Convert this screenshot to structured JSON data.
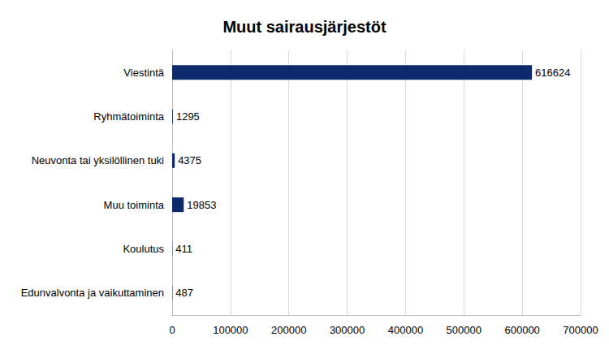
{
  "chart_data": {
    "type": "bar",
    "title": "Muut sairausjärjestöt",
    "orientation": "horizontal",
    "categories": [
      "Viestintä",
      "Ryhmätoiminta",
      "Neuvonta tai yksilöllinen tuki",
      "Muu toiminta",
      "Koulutus",
      "Edunvalvonta ja vaikuttaminen"
    ],
    "values": [
      616624,
      1295,
      4375,
      19853,
      411,
      487
    ],
    "color": "#0d2a6b",
    "xlim": [
      0,
      700000
    ],
    "xticks": [
      0,
      100000,
      200000,
      300000,
      400000,
      500000,
      600000,
      700000
    ],
    "grid": true,
    "data_labels": true
  }
}
